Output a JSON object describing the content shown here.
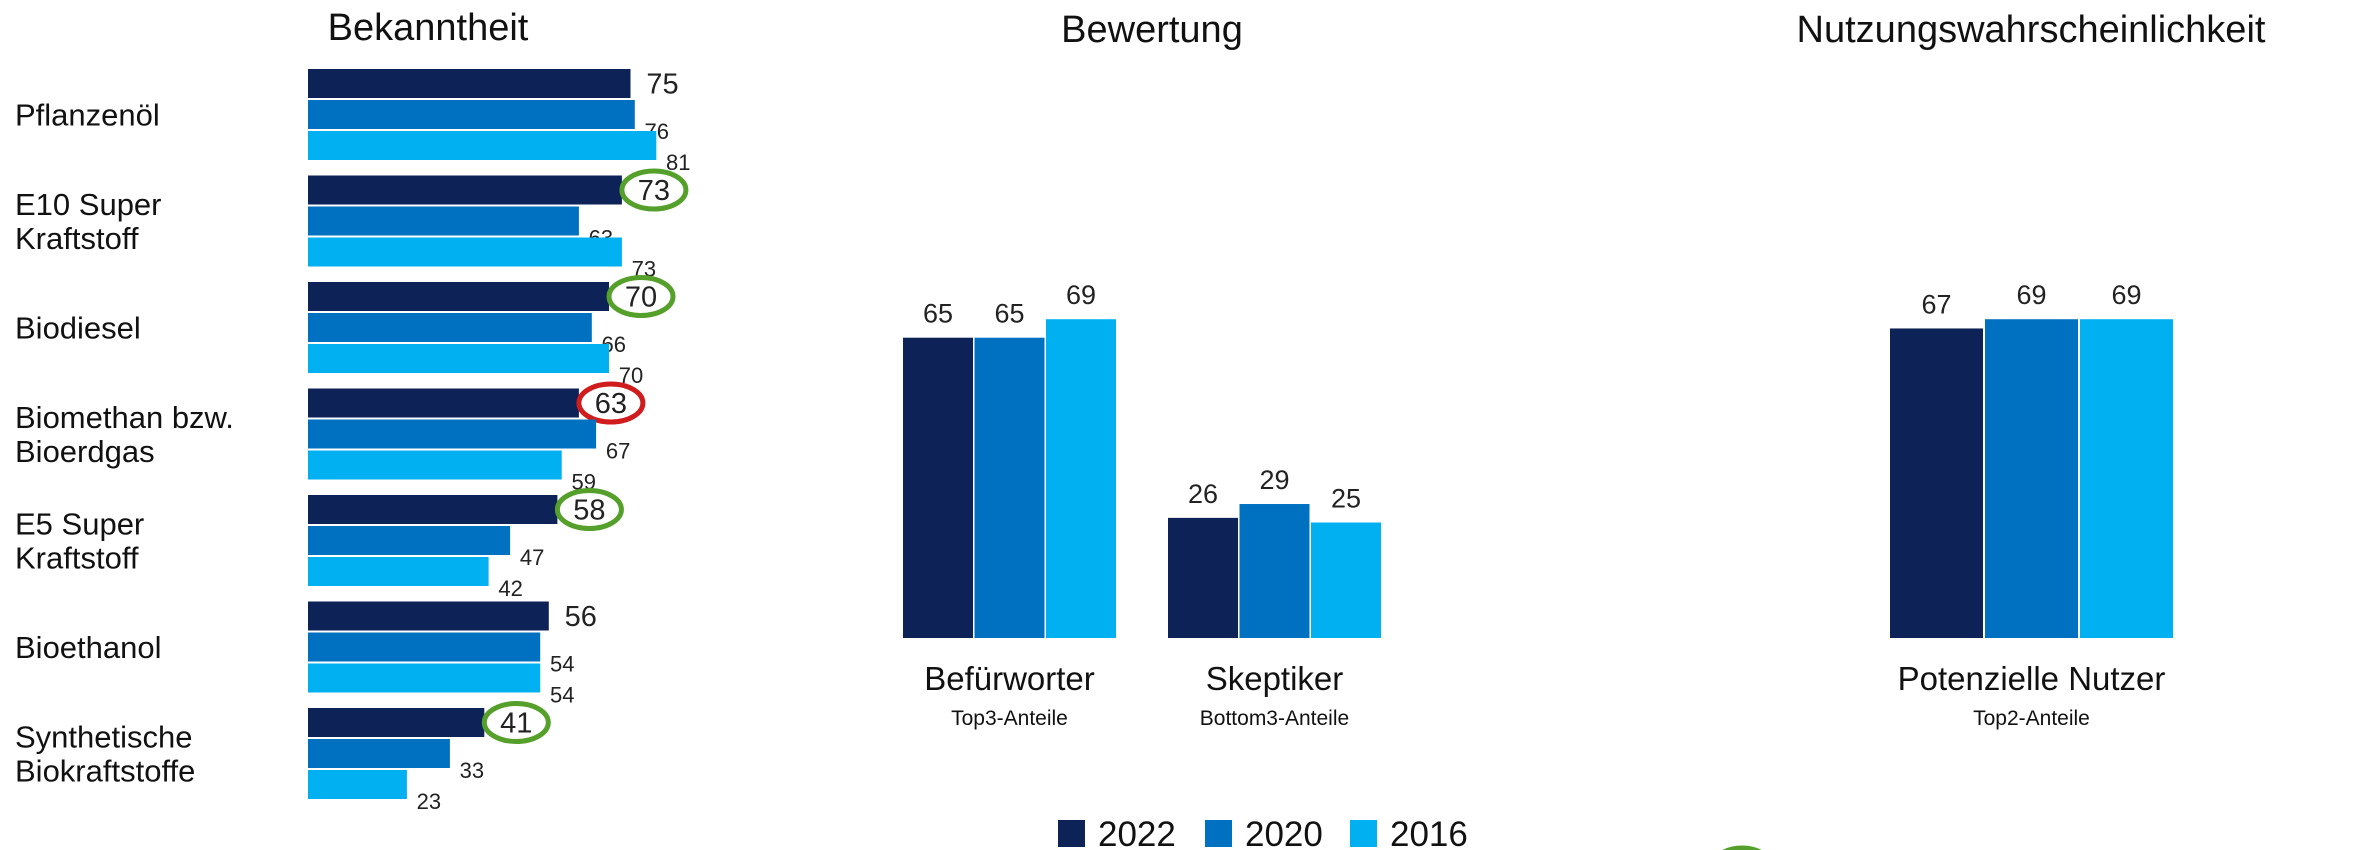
{
  "colors": {
    "2022": "#0d2257",
    "2020": "#0070c0",
    "2016": "#00b0f0",
    "ring_green": "#55a02a",
    "ring_red": "#d01c1c"
  },
  "legend": {
    "labels": [
      "2022",
      "2020",
      "2016"
    ]
  },
  "chart_data": [
    {
      "type": "bar",
      "orientation": "horizontal",
      "title": "Bekanntheit",
      "categories": [
        [
          "Pflanzenöl"
        ],
        [
          "E10 Super",
          "Kraftstoff"
        ],
        [
          "Biodiesel"
        ],
        [
          "Biomethan bzw.",
          "Bioerdgas"
        ],
        [
          "E5 Super",
          "Kraftstoff"
        ],
        [
          "Bioethanol"
        ],
        [
          "Synthetische",
          "Biokraftstoffe"
        ]
      ],
      "series": [
        {
          "name": "2022",
          "values": [
            75,
            73,
            70,
            63,
            58,
            56,
            41
          ]
        },
        {
          "name": "2020",
          "values": [
            76,
            63,
            66,
            67,
            47,
            54,
            33
          ]
        },
        {
          "name": "2016",
          "values": [
            81,
            73,
            70,
            59,
            42,
            54,
            23
          ]
        }
      ],
      "highlights": [
        "none",
        "green",
        "green",
        "red",
        "green",
        "none",
        "green"
      ],
      "xlim": [
        0,
        100
      ]
    },
    {
      "type": "bar",
      "orientation": "vertical",
      "title": "Bewertung",
      "groups": [
        {
          "label": "Befürworter",
          "sublabel": "Top3-Anteile",
          "values": [
            65,
            65,
            69
          ]
        },
        {
          "label": "Skeptiker",
          "sublabel": "Bottom3-Anteile",
          "values": [
            26,
            29,
            25
          ]
        }
      ],
      "series_names": [
        "2022",
        "2020",
        "2016"
      ],
      "ylim": [
        0,
        100
      ]
    },
    {
      "type": "bar",
      "orientation": "vertical",
      "title": "Nutzungswahrscheinlichkeit",
      "groups": [
        {
          "label": "Potenzielle Nutzer",
          "sublabel": "Top2-Anteile",
          "values": [
            67,
            69,
            69
          ]
        }
      ],
      "series_names": [
        "2022",
        "2020",
        "2016"
      ],
      "ylim": [
        0,
        100
      ]
    }
  ]
}
